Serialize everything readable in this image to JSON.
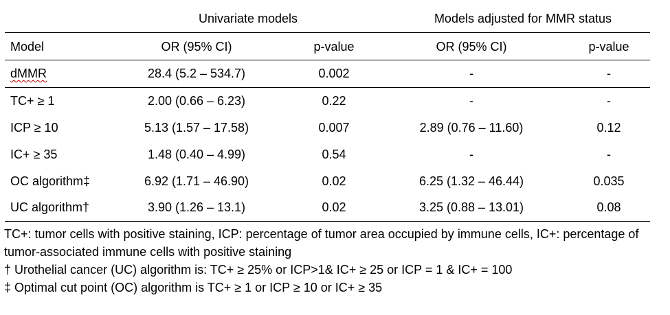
{
  "table": {
    "group_headers": [
      "Univariate models",
      "Models adjusted for MMR status"
    ],
    "columns": [
      "Model",
      "OR (95% CI)",
      "p-value",
      "OR (95% CI)",
      "p-value"
    ],
    "rows": [
      [
        "dMMR",
        "28.4 (5.2 – 534.7)",
        "0.002",
        "-",
        "-"
      ],
      [
        "TC+ ≥ 1",
        "2.00 (0.66 – 6.23)",
        "0.22",
        "-",
        "-"
      ],
      [
        "ICP ≥ 10",
        "5.13 (1.57 – 17.58)",
        "0.007",
        "2.89 (0.76 – 11.60)",
        "0.12"
      ],
      [
        "IC+ ≥ 35",
        "1.48 (0.40 – 4.99)",
        "0.54",
        "-",
        "-"
      ],
      [
        "OC algorithm‡",
        "6.92 (1.71 – 46.90)",
        "0.02",
        "6.25 (1.32 – 46.44)",
        "0.035"
      ],
      [
        "UC algorithm†",
        "3.90 (1.26 – 13.1)",
        "0.02",
        "3.25 (0.88 – 13.01)",
        "0.08"
      ]
    ]
  },
  "footnotes": [
    "TC+: tumor cells with positive staining, ICP: percentage of tumor area occupied by immune cells, IC+: percentage of tumor-associated immune cells with positive staining",
    "† Urothelial cancer (UC) algorithm is: TC+ ≥ 25% or ICP>1& IC+ ≥ 25 or ICP = 1 & IC+ = 100",
    "‡ Optimal cut point (OC) algorithm is TC+ ≥ 1 or ICP ≥ 10 or IC+ ≥ 35"
  ]
}
